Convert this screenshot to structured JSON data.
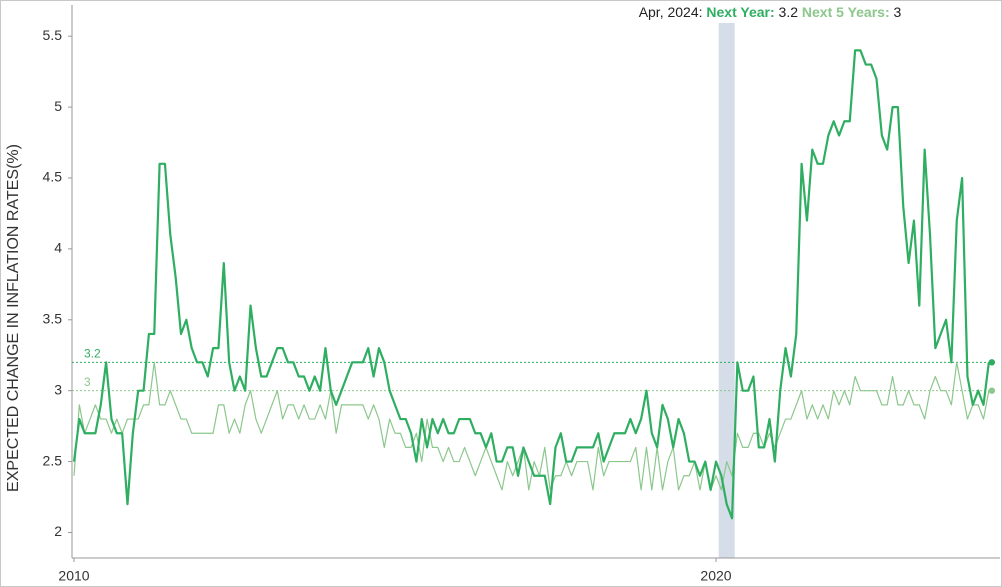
{
  "chart_data": {
    "type": "line",
    "y_label": "EXPECTED CHANGE IN INFLATION RATES(%)",
    "x": [
      "Jan, 2010",
      "Feb, 2010",
      "Mar, 2010",
      "Apr, 2010",
      "May, 2010",
      "Jun, 2010",
      "Jul, 2010",
      "Aug, 2010",
      "Sep, 2010",
      "Oct, 2010",
      "Nov, 2010",
      "Dec, 2010",
      "Jan, 2011",
      "Feb, 2011",
      "Mar, 2011",
      "Apr, 2011",
      "May, 2011",
      "Jun, 2011",
      "Jul, 2011",
      "Aug, 2011",
      "Sep, 2011",
      "Oct, 2011",
      "Nov, 2011",
      "Dec, 2011",
      "Jan, 2012",
      "Feb, 2012",
      "Mar, 2012",
      "Apr, 2012",
      "May, 2012",
      "Jun, 2012",
      "Jul, 2012",
      "Aug, 2012",
      "Sep, 2012",
      "Oct, 2012",
      "Nov, 2012",
      "Dec, 2012",
      "Jan, 2013",
      "Feb, 2013",
      "Mar, 2013",
      "Apr, 2013",
      "May, 2013",
      "Jun, 2013",
      "Jul, 2013",
      "Aug, 2013",
      "Sep, 2013",
      "Oct, 2013",
      "Nov, 2013",
      "Dec, 2013",
      "Jan, 2014",
      "Feb, 2014",
      "Mar, 2014",
      "Apr, 2014",
      "May, 2014",
      "Jun, 2014",
      "Jul, 2014",
      "Aug, 2014",
      "Sep, 2014",
      "Oct, 2014",
      "Nov, 2014",
      "Dec, 2014",
      "Jan, 2015",
      "Feb, 2015",
      "Mar, 2015",
      "Apr, 2015",
      "May, 2015",
      "Jun, 2015",
      "Jul, 2015",
      "Aug, 2015",
      "Sep, 2015",
      "Oct, 2015",
      "Nov, 2015",
      "Dec, 2015",
      "Jan, 2016",
      "Feb, 2016",
      "Mar, 2016",
      "Apr, 2016",
      "May, 2016",
      "Jun, 2016",
      "Jul, 2016",
      "Aug, 2016",
      "Sep, 2016",
      "Oct, 2016",
      "Nov, 2016",
      "Dec, 2016",
      "Jan, 2017",
      "Feb, 2017",
      "Mar, 2017",
      "Apr, 2017",
      "May, 2017",
      "Jun, 2017",
      "Jul, 2017",
      "Aug, 2017",
      "Sep, 2017",
      "Oct, 2017",
      "Nov, 2017",
      "Dec, 2017",
      "Jan, 2018",
      "Feb, 2018",
      "Mar, 2018",
      "Apr, 2018",
      "May, 2018",
      "Jun, 2018",
      "Jul, 2018",
      "Aug, 2018",
      "Sep, 2018",
      "Oct, 2018",
      "Nov, 2018",
      "Dec, 2018",
      "Jan, 2019",
      "Feb, 2019",
      "Mar, 2019",
      "Apr, 2019",
      "May, 2019",
      "Jun, 2019",
      "Jul, 2019",
      "Aug, 2019",
      "Sep, 2019",
      "Oct, 2019",
      "Nov, 2019",
      "Dec, 2019",
      "Jan, 2020",
      "Feb, 2020",
      "Mar, 2020",
      "Apr, 2020",
      "May, 2020",
      "Jun, 2020",
      "Jul, 2020",
      "Aug, 2020",
      "Sep, 2020",
      "Oct, 2020",
      "Nov, 2020",
      "Dec, 2020",
      "Jan, 2021",
      "Feb, 2021",
      "Mar, 2021",
      "Apr, 2021",
      "May, 2021",
      "Jun, 2021",
      "Jul, 2021",
      "Aug, 2021",
      "Sep, 2021",
      "Oct, 2021",
      "Nov, 2021",
      "Dec, 2021",
      "Jan, 2022",
      "Feb, 2022",
      "Mar, 2022",
      "Apr, 2022",
      "May, 2022",
      "Jun, 2022",
      "Jul, 2022",
      "Aug, 2022",
      "Sep, 2022",
      "Oct, 2022",
      "Nov, 2022",
      "Dec, 2022",
      "Jan, 2023",
      "Feb, 2023",
      "Mar, 2023",
      "Apr, 2023",
      "May, 2023",
      "Jun, 2023",
      "Jul, 2023",
      "Aug, 2023",
      "Sep, 2023",
      "Oct, 2023",
      "Nov, 2023",
      "Dec, 2023",
      "Jan, 2024",
      "Feb, 2024",
      "Mar, 2024",
      "Apr, 2024"
    ],
    "series": [
      {
        "name": "Next Year",
        "color": "#2fae62",
        "width": 2.2,
        "values": [
          2.5,
          2.8,
          2.7,
          2.7,
          2.7,
          2.9,
          3.2,
          2.8,
          2.7,
          2.7,
          2.2,
          2.7,
          3.0,
          3.0,
          3.4,
          3.4,
          4.6,
          4.6,
          4.1,
          3.8,
          3.4,
          3.5,
          3.3,
          3.2,
          3.2,
          3.1,
          3.3,
          3.3,
          3.9,
          3.2,
          3.0,
          3.1,
          3.0,
          3.6,
          3.3,
          3.1,
          3.1,
          3.2,
          3.3,
          3.3,
          3.2,
          3.2,
          3.1,
          3.1,
          3.0,
          3.1,
          3.0,
          3.3,
          3.0,
          2.9,
          3.0,
          3.1,
          3.2,
          3.2,
          3.2,
          3.3,
          3.1,
          3.3,
          3.2,
          3.0,
          2.9,
          2.8,
          2.8,
          2.7,
          2.5,
          2.8,
          2.6,
          2.8,
          2.7,
          2.8,
          2.7,
          2.7,
          2.8,
          2.8,
          2.8,
          2.7,
          2.7,
          2.6,
          2.7,
          2.5,
          2.5,
          2.6,
          2.6,
          2.4,
          2.6,
          2.5,
          2.4,
          2.4,
          2.4,
          2.2,
          2.6,
          2.7,
          2.5,
          2.5,
          2.6,
          2.6,
          2.6,
          2.6,
          2.7,
          2.5,
          2.6,
          2.7,
          2.7,
          2.7,
          2.8,
          2.7,
          2.8,
          3.0,
          2.7,
          2.6,
          2.9,
          2.8,
          2.6,
          2.8,
          2.7,
          2.5,
          2.5,
          2.4,
          2.5,
          2.3,
          2.5,
          2.4,
          2.2,
          2.1,
          3.2,
          3.0,
          3.0,
          3.1,
          2.6,
          2.6,
          2.8,
          2.5,
          3.0,
          3.3,
          3.1,
          3.4,
          4.6,
          4.2,
          4.7,
          4.6,
          4.6,
          4.8,
          4.9,
          4.8,
          4.9,
          4.9,
          5.4,
          5.4,
          5.3,
          5.3,
          5.2,
          4.8,
          4.7,
          5.0,
          5.0,
          4.3,
          3.9,
          4.2,
          3.6,
          4.7,
          4.1,
          3.3,
          3.4,
          3.5,
          3.2,
          4.2,
          4.5,
          3.1,
          2.9,
          3.0,
          2.9,
          3.2
        ]
      },
      {
        "name": "Next 5 Years",
        "color": "#8cc78c",
        "width": 1.2,
        "values": [
          2.4,
          2.9,
          2.7,
          2.8,
          2.9,
          2.8,
          2.8,
          2.7,
          2.8,
          2.7,
          2.8,
          2.8,
          2.8,
          2.9,
          2.9,
          3.2,
          2.9,
          2.9,
          3.0,
          2.9,
          2.8,
          2.8,
          2.7,
          2.7,
          2.7,
          2.7,
          2.7,
          2.9,
          2.9,
          2.7,
          2.8,
          2.7,
          2.9,
          3.0,
          2.8,
          2.7,
          2.8,
          2.9,
          3.0,
          2.8,
          2.9,
          2.9,
          2.8,
          2.9,
          2.8,
          2.8,
          2.9,
          2.8,
          3.0,
          2.7,
          2.9,
          2.9,
          2.9,
          2.9,
          2.9,
          2.8,
          2.9,
          2.8,
          2.6,
          2.8,
          2.7,
          2.7,
          2.6,
          2.6,
          2.7,
          2.5,
          2.8,
          2.6,
          2.6,
          2.5,
          2.6,
          2.5,
          2.5,
          2.6,
          2.5,
          2.4,
          2.5,
          2.6,
          2.5,
          2.4,
          2.3,
          2.5,
          2.4,
          2.5,
          2.6,
          2.3,
          2.5,
          2.4,
          2.6,
          2.3,
          2.4,
          2.4,
          2.5,
          2.4,
          2.5,
          2.5,
          2.5,
          2.3,
          2.6,
          2.4,
          2.5,
          2.5,
          2.5,
          2.5,
          2.5,
          2.6,
          2.3,
          2.6,
          2.3,
          2.6,
          2.3,
          2.5,
          2.6,
          2.3,
          2.4,
          2.4,
          2.5,
          2.3,
          2.5,
          2.3,
          2.4,
          2.3,
          2.5,
          2.4,
          2.7,
          2.6,
          2.6,
          2.7,
          2.7,
          2.6,
          2.7,
          2.6,
          2.7,
          2.8,
          2.8,
          2.9,
          3.0,
          2.8,
          2.9,
          2.8,
          2.9,
          2.8,
          3.0,
          2.9,
          3.0,
          2.9,
          3.1,
          3.0,
          3.0,
          3.0,
          3.0,
          2.9,
          2.9,
          3.1,
          2.9,
          2.9,
          3.0,
          2.9,
          2.9,
          2.8,
          3.0,
          3.1,
          3.0,
          3.0,
          2.9,
          3.2,
          3.0,
          2.8,
          2.9,
          2.9,
          2.8,
          3.0
        ]
      }
    ],
    "shaded": [
      {
        "start": "Feb, 2020",
        "end": "Apr, 2020",
        "color": "#d5dde8"
      }
    ],
    "xticks": [
      {
        "value": "Jan, 2010",
        "label": "2010"
      },
      {
        "value": "Jan, 2020",
        "label": "2020"
      }
    ],
    "ylim": [
      1.82,
      5.72
    ],
    "yticks": [
      2,
      2.5,
      3,
      3.5,
      4,
      4.5,
      5,
      5.5
    ],
    "grid": false
  }
}
